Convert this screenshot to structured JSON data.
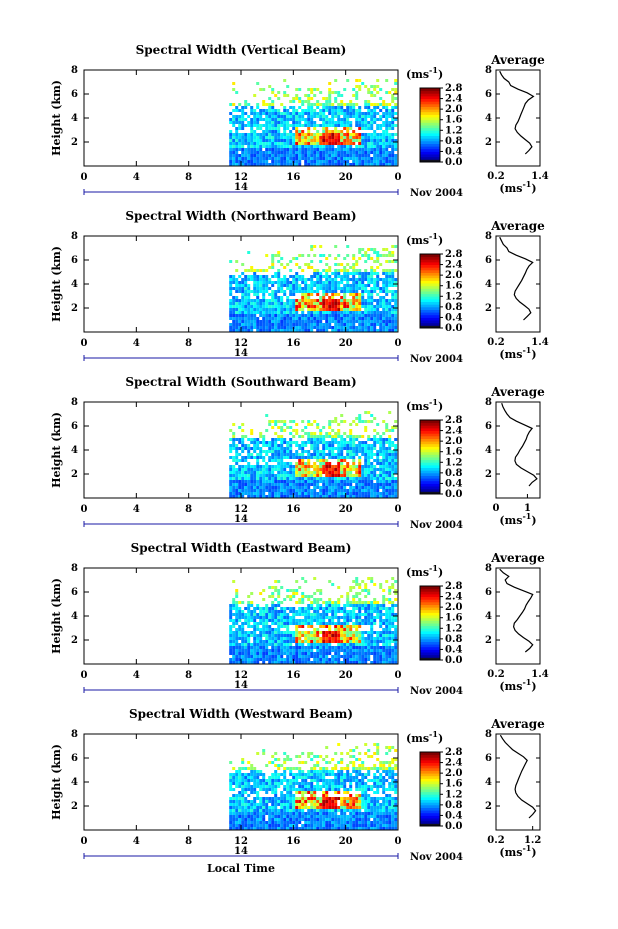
{
  "chart_data": [
    {
      "type": "heatmap",
      "title": "Spectral Width (Vertical Beam)",
      "ylabel": "Height (km)",
      "ylim": [
        0,
        8
      ],
      "yticks": [
        "2",
        "4",
        "6",
        "8"
      ],
      "xticks": [
        "0",
        "4",
        "8",
        "12",
        "16",
        "20",
        "0"
      ],
      "day_label": "14",
      "date_label": "Nov 2004",
      "colorbar_unit": "(ms",
      "colorbar_unit_exp": "-1",
      "colorbar_unit_close": ")",
      "colorbar_ticks": [
        "0.0",
        "0.4",
        "0.8",
        "1.2",
        "1.6",
        "2.0",
        "2.4",
        "2.8"
      ],
      "profile_title": "Average",
      "profile_xticks": [
        "0.2",
        "1.4"
      ],
      "profile_xlim": [
        0.2,
        1.4
      ],
      "profile_yticks": [
        "2",
        "4",
        "6",
        "8"
      ],
      "profile_xlabel": "(ms",
      "profile_xlabel_exp": "-1",
      "profile_xlabel_close": ")",
      "profile_heights": [
        1.0,
        1.3,
        1.6,
        1.9,
        2.2,
        2.5,
        2.8,
        3.1,
        3.4,
        3.7,
        4.0,
        4.3,
        4.6,
        4.9,
        5.2,
        5.5,
        5.8,
        6.1,
        6.4,
        6.7,
        7.0,
        7.3,
        7.6,
        7.9
      ],
      "profile_values": [
        1.0,
        1.1,
        1.18,
        1.12,
        1.0,
        0.88,
        0.78,
        0.72,
        0.74,
        0.8,
        0.84,
        0.88,
        0.92,
        0.96,
        1.0,
        1.08,
        1.22,
        1.05,
        0.8,
        0.6,
        0.55,
        0.42,
        0.35,
        0.3
      ]
    },
    {
      "type": "heatmap",
      "title": "Spectral Width (Northward Beam)",
      "ylabel": "Height (km)",
      "ylim": [
        0,
        8
      ],
      "yticks": [
        "2",
        "4",
        "6",
        "8"
      ],
      "xticks": [
        "0",
        "4",
        "8",
        "12",
        "16",
        "20",
        "0"
      ],
      "day_label": "14",
      "date_label": "Nov 2004",
      "colorbar_unit": "(ms",
      "colorbar_unit_exp": "-1",
      "colorbar_unit_close": ")",
      "colorbar_ticks": [
        "0.0",
        "0.4",
        "0.8",
        "1.2",
        "1.6",
        "2.0",
        "2.4",
        "2.8"
      ],
      "profile_title": "Average",
      "profile_xticks": [
        "0.2",
        "1.4"
      ],
      "profile_xlim": [
        0.2,
        1.4
      ],
      "profile_yticks": [
        "2",
        "4",
        "6",
        "8"
      ],
      "profile_xlabel": "(ms",
      "profile_xlabel_exp": "-1",
      "profile_xlabel_close": ")",
      "profile_heights": [
        1.0,
        1.3,
        1.6,
        1.9,
        2.2,
        2.5,
        2.8,
        3.1,
        3.4,
        3.7,
        4.0,
        4.3,
        4.6,
        4.9,
        5.2,
        5.5,
        5.8,
        6.1,
        6.4,
        6.7,
        7.0,
        7.3,
        7.6,
        7.9
      ],
      "profile_values": [
        0.95,
        1.05,
        1.15,
        1.1,
        0.98,
        0.85,
        0.75,
        0.7,
        0.72,
        0.78,
        0.84,
        0.9,
        0.95,
        1.0,
        1.04,
        1.1,
        1.2,
        1.0,
        0.75,
        0.55,
        0.5,
        0.4,
        0.35,
        0.3
      ]
    },
    {
      "type": "heatmap",
      "title": "Spectral Width (Southward Beam)",
      "ylabel": "Height (km)",
      "ylim": [
        0,
        8
      ],
      "yticks": [
        "2",
        "4",
        "6",
        "8"
      ],
      "xticks": [
        "0",
        "4",
        "8",
        "12",
        "16",
        "20",
        "0"
      ],
      "day_label": "14",
      "date_label": "Nov 2004",
      "colorbar_unit": "(ms",
      "colorbar_unit_exp": "-1",
      "colorbar_unit_close": ")",
      "colorbar_ticks": [
        "0.0",
        "0.4",
        "0.8",
        "1.2",
        "1.6",
        "2.0",
        "2.4",
        "2.8"
      ],
      "profile_title": "Average",
      "profile_xticks": [
        "0",
        "1"
      ],
      "profile_xlim": [
        0,
        1.4
      ],
      "profile_yticks": [
        "2",
        "4",
        "6",
        "8"
      ],
      "profile_xlabel": "(ms",
      "profile_xlabel_exp": "-1",
      "profile_xlabel_close": ")",
      "profile_heights": [
        1.0,
        1.3,
        1.6,
        1.9,
        2.2,
        2.5,
        2.8,
        3.1,
        3.4,
        3.7,
        4.0,
        4.3,
        4.6,
        4.9,
        5.2,
        5.5,
        5.8,
        6.1,
        6.4,
        6.7,
        7.0,
        7.3,
        7.6,
        7.9
      ],
      "profile_values": [
        1.05,
        1.15,
        1.3,
        1.2,
        1.0,
        0.8,
        0.65,
        0.6,
        0.62,
        0.7,
        0.76,
        0.84,
        0.9,
        0.96,
        1.0,
        1.06,
        1.15,
        0.9,
        0.65,
        0.45,
        0.35,
        0.28,
        0.22,
        0.18
      ]
    },
    {
      "type": "heatmap",
      "title": "Spectral Width (Eastward Beam)",
      "ylabel": "Height (km)",
      "ylim": [
        0,
        8
      ],
      "yticks": [
        "2",
        "4",
        "6",
        "8"
      ],
      "xticks": [
        "0",
        "4",
        "8",
        "12",
        "16",
        "20",
        "0"
      ],
      "day_label": "14",
      "date_label": "Nov 2004",
      "colorbar_unit": "(ms",
      "colorbar_unit_exp": "-1",
      "colorbar_unit_close": ")",
      "colorbar_ticks": [
        "0.0",
        "0.4",
        "0.8",
        "1.2",
        "1.6",
        "2.0",
        "2.4",
        "2.8"
      ],
      "profile_title": "Average",
      "profile_xticks": [
        "0.2",
        "1.4"
      ],
      "profile_xlim": [
        0.2,
        1.4
      ],
      "profile_yticks": [
        "2",
        "4",
        "6",
        "8"
      ],
      "profile_xlabel": "(ms",
      "profile_xlabel_exp": "-1",
      "profile_xlabel_close": ")",
      "profile_heights": [
        1.0,
        1.3,
        1.6,
        1.9,
        2.2,
        2.5,
        2.8,
        3.1,
        3.4,
        3.7,
        4.0,
        4.3,
        4.6,
        4.9,
        5.2,
        5.5,
        5.8,
        6.1,
        6.4,
        6.7,
        7.0,
        7.3,
        7.6,
        7.9
      ],
      "profile_values": [
        1.0,
        1.12,
        1.2,
        1.1,
        0.95,
        0.82,
        0.72,
        0.68,
        0.7,
        0.78,
        0.85,
        0.92,
        0.98,
        1.02,
        1.08,
        1.15,
        1.2,
        0.95,
        0.7,
        0.5,
        0.45,
        0.55,
        0.4,
        0.3
      ]
    },
    {
      "type": "heatmap",
      "title": "Spectral Width (Westward Beam)",
      "ylabel": "Height (km)",
      "ylim": [
        0,
        8
      ],
      "yticks": [
        "2",
        "4",
        "6",
        "8"
      ],
      "xticks": [
        "0",
        "4",
        "8",
        "12",
        "16",
        "20",
        "0"
      ],
      "day_label": "14",
      "date_label": "Nov 2004",
      "xlabel": "Local Time",
      "colorbar_unit": "(ms",
      "colorbar_unit_exp": "-1",
      "colorbar_unit_close": ")",
      "colorbar_ticks": [
        "0.0",
        "0.4",
        "0.8",
        "1.2",
        "1.6",
        "2.0",
        "2.4",
        "2.8"
      ],
      "profile_title": "Average",
      "profile_xticks": [
        "0.2",
        "1.2"
      ],
      "profile_xlim": [
        0.2,
        1.4
      ],
      "profile_yticks": [
        "2",
        "4",
        "6",
        "8"
      ],
      "profile_xlabel": "(ms",
      "profile_xlabel_exp": "-1",
      "profile_xlabel_close": ")",
      "profile_heights": [
        1.0,
        1.3,
        1.6,
        1.9,
        2.2,
        2.5,
        2.8,
        3.1,
        3.4,
        3.7,
        4.0,
        4.3,
        4.6,
        4.9,
        5.2,
        5.5,
        5.8,
        6.1,
        6.4,
        6.7,
        7.0,
        7.3,
        7.6,
        7.9
      ],
      "profile_values": [
        1.1,
        1.2,
        1.28,
        1.2,
        1.05,
        0.9,
        0.8,
        0.74,
        0.72,
        0.74,
        0.78,
        0.82,
        0.86,
        0.9,
        0.95,
        1.0,
        1.05,
        0.95,
        0.8,
        0.65,
        0.55,
        0.45,
        0.38,
        0.32
      ]
    }
  ]
}
